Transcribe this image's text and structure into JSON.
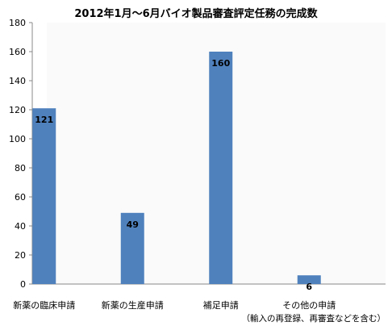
{
  "chart_data": {
    "type": "bar",
    "title": "2012年1月～6月バイオ製品審査評定任務の完成数",
    "categories": [
      "新薬の臨床申請",
      "新薬の生産申請",
      "補足申請",
      "その他の申請"
    ],
    "values": [
      121,
      49,
      160,
      6
    ],
    "data_labels": [
      "121",
      "49",
      "160",
      "6"
    ],
    "ylim": [
      0,
      180
    ],
    "yticks": [
      0,
      20,
      40,
      60,
      80,
      100,
      120,
      140,
      160,
      180
    ],
    "grid": false,
    "bar_color": "#4F81BD",
    "footnote": "（輸入の再登録、再審査などを含む）"
  }
}
